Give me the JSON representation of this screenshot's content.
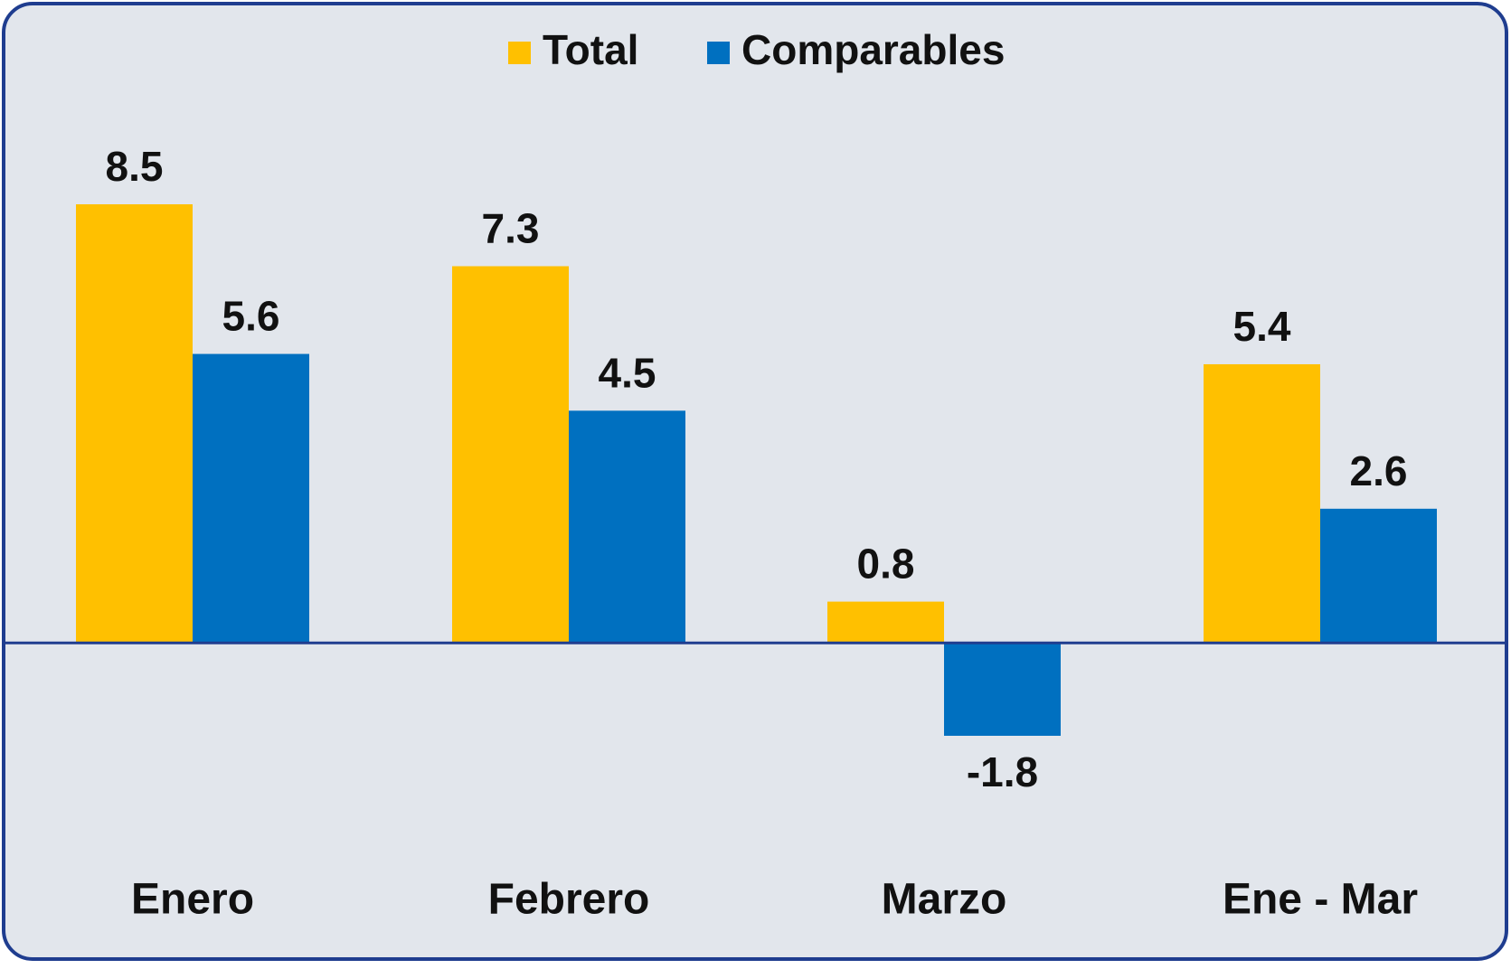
{
  "chart_data": {
    "type": "bar",
    "categories": [
      "Enero",
      "Febrero",
      "Marzo",
      "Ene - Mar"
    ],
    "series": [
      {
        "name": "Total",
        "color": "#FFC000",
        "values": [
          8.5,
          7.3,
          0.8,
          5.4
        ]
      },
      {
        "name": "Comparables",
        "color": "#0070C0",
        "values": [
          5.6,
          4.5,
          -1.8,
          2.6
        ]
      }
    ],
    "grid": false
  }
}
